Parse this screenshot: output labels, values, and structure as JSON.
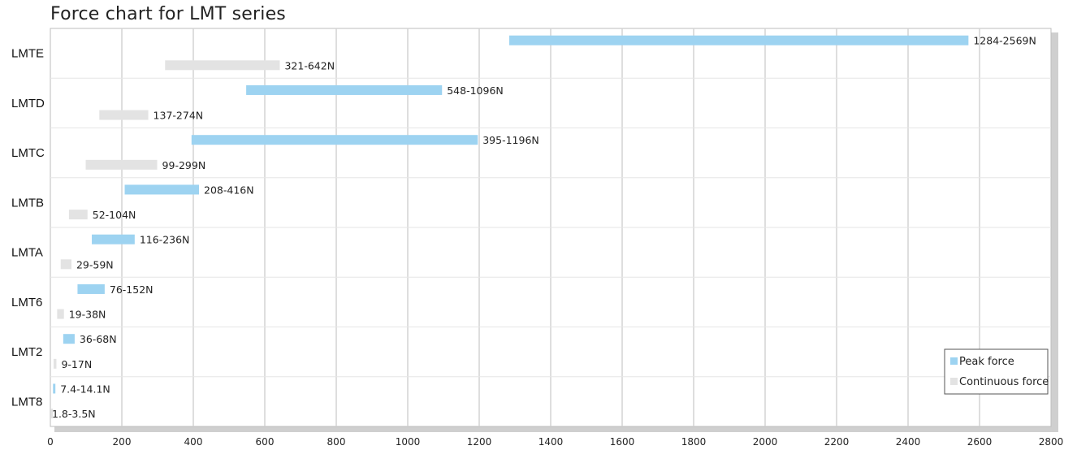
{
  "chart_data": {
    "type": "bar",
    "orientation": "horizontal",
    "title": "Force chart for LMT series",
    "categories": [
      "LMTE",
      "LMTD",
      "LMTC",
      "LMTB",
      "LMTA",
      "LMT6",
      "LMT2",
      "LMT8"
    ],
    "series": [
      {
        "name": "Peak force",
        "color": "#9dd3f1",
        "ranges": [
          [
            1284,
            2569
          ],
          [
            548,
            1096
          ],
          [
            395,
            1196
          ],
          [
            208,
            416
          ],
          [
            116,
            236
          ],
          [
            76,
            152
          ],
          [
            36,
            68
          ],
          [
            7.4,
            14.1
          ]
        ],
        "labels": [
          "1284-2569N",
          "548-1096N",
          "395-1196N",
          "208-416N",
          "116-236N",
          "76-152N",
          "36-68N",
          "7.4-14.1N"
        ]
      },
      {
        "name": "Continuous force",
        "color": "#e3e3e3",
        "ranges": [
          [
            321,
            642
          ],
          [
            137,
            274
          ],
          [
            99,
            299
          ],
          [
            52,
            104
          ],
          [
            29,
            59
          ],
          [
            19,
            38
          ],
          [
            9,
            17
          ],
          [
            1.8,
            3.5
          ]
        ],
        "labels": [
          "321-642N",
          "137-274N",
          "99-299N",
          "52-104N",
          "29-59N",
          "19-38N",
          "9-17N",
          "1.8-3.5N"
        ]
      }
    ],
    "xlim": [
      0,
      2800
    ],
    "xticks": [
      0,
      200,
      400,
      600,
      800,
      1000,
      1200,
      1400,
      1600,
      1800,
      2000,
      2200,
      2400,
      2600,
      2800
    ],
    "grid": true,
    "legend_position": "bottom-right"
  }
}
